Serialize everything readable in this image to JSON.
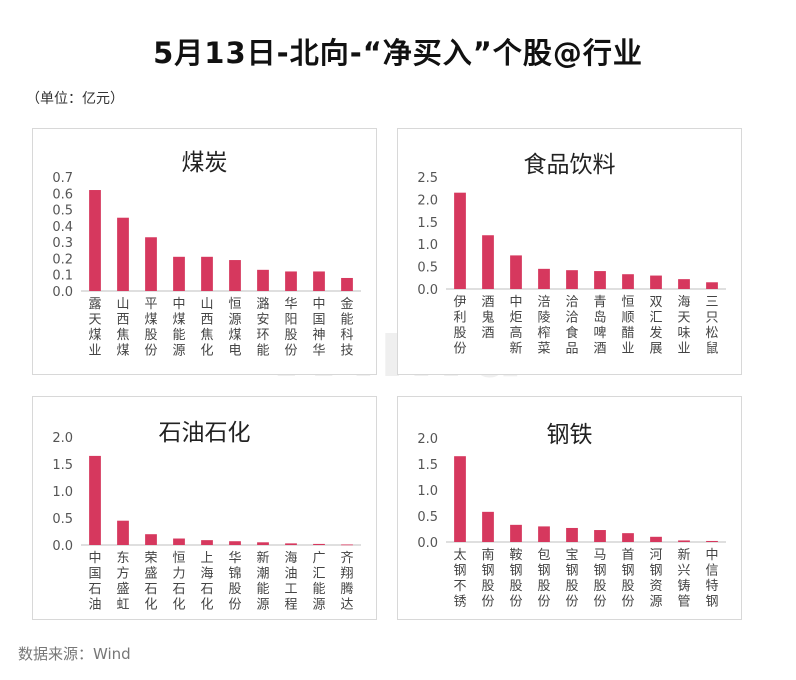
{
  "title": "5月13日-北向-“净买入”个股@行业",
  "unit_label": "（单位：亿元）",
  "source_label": "数据来源：Wind",
  "watermark": "Win.d",
  "bar_color": "#d6385e",
  "chart_data": [
    {
      "type": "bar",
      "title": "煤炭",
      "categories": [
        "露天煤业",
        "山西焦煤",
        "平煤股份",
        "中煤能源",
        "山西焦化",
        "恒源煤电",
        "潞安环能",
        "华阳股份",
        "中国神华",
        "金能科技"
      ],
      "values": [
        0.62,
        0.45,
        0.33,
        0.21,
        0.21,
        0.19,
        0.13,
        0.12,
        0.12,
        0.08
      ],
      "ylim": [
        0,
        0.7
      ],
      "yticks": [
        "0.0",
        "0.1",
        "0.2",
        "0.3",
        "0.4",
        "0.5",
        "0.6",
        "0.7"
      ],
      "grid": false
    },
    {
      "type": "bar",
      "title": "食品饮料",
      "categories": [
        "伊利股份",
        "酒鬼酒",
        "中炬高新",
        "涪陵榨菜",
        "洽洽食品",
        "青岛啤酒",
        "恒顺醋业",
        "双汇发展",
        "海天味业",
        "三只松鼠"
      ],
      "values": [
        2.15,
        1.2,
        0.75,
        0.45,
        0.42,
        0.4,
        0.33,
        0.3,
        0.22,
        0.15
      ],
      "ylim": [
        0,
        2.5
      ],
      "yticks": [
        "0.0",
        "0.5",
        "1.0",
        "1.5",
        "2.0",
        "2.5"
      ],
      "grid": false
    },
    {
      "type": "bar",
      "title": "石油石化",
      "categories": [
        "中国石油",
        "东方盛虹",
        "荣盛石化",
        "恒力石化",
        "上海石化",
        "华锦股份",
        "新潮能源",
        "海油工程",
        "广汇能源",
        "齐翔腾达"
      ],
      "values": [
        1.65,
        0.45,
        0.2,
        0.12,
        0.09,
        0.07,
        0.05,
        0.03,
        0.02,
        0.01
      ],
      "ylim": [
        0,
        2.0
      ],
      "yticks": [
        "0.0",
        "0.5",
        "1.0",
        "1.5",
        "2.0"
      ],
      "grid": false
    },
    {
      "type": "bar",
      "title": "钢铁",
      "categories": [
        "太钢不锈",
        "南钢股份",
        "鞍钢股份",
        "包钢股份",
        "宝钢股份",
        "马钢股份",
        "首钢股份",
        "河钢资源",
        "新兴铸管",
        "中信特钢"
      ],
      "values": [
        1.65,
        0.58,
        0.33,
        0.3,
        0.27,
        0.23,
        0.17,
        0.1,
        0.03,
        0.02
      ],
      "ylim": [
        0,
        2.0
      ],
      "yticks": [
        "0.0",
        "0.5",
        "1.0",
        "1.5",
        "2.0"
      ],
      "grid": false
    }
  ]
}
